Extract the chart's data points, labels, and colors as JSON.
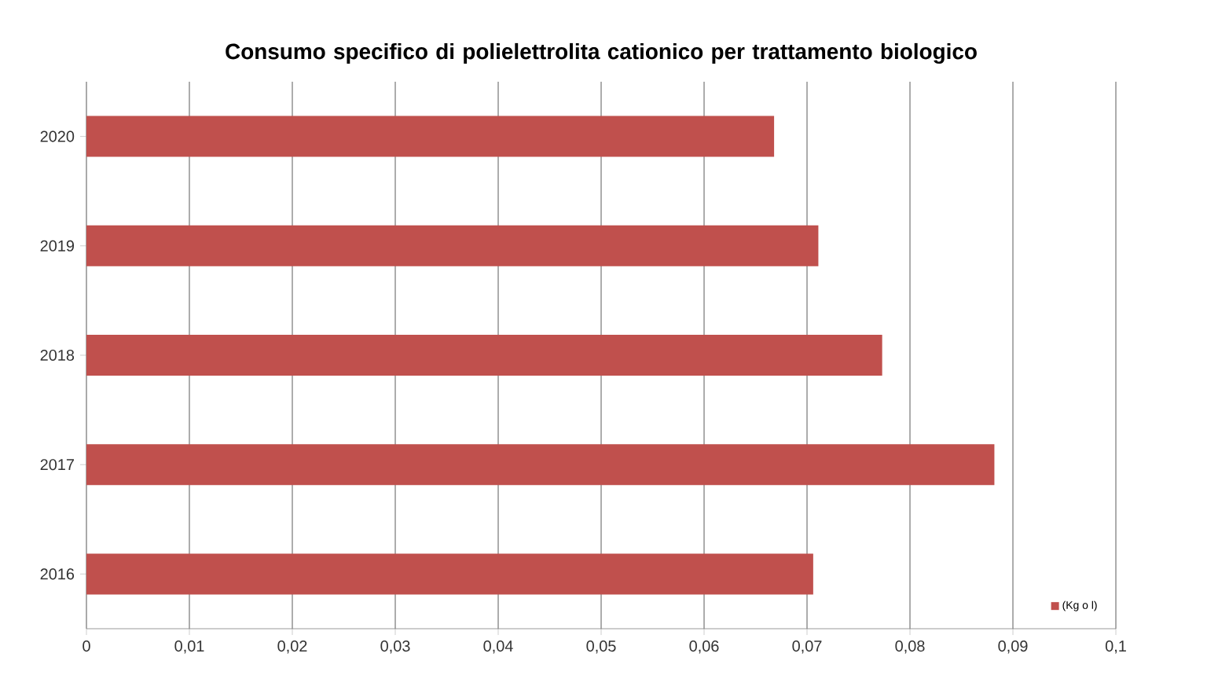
{
  "chart_data": {
    "type": "bar",
    "orientation": "horizontal",
    "title": "Consumo specifico di polielettrolita cationico per trattamento biologico",
    "categories": [
      "2020",
      "2019",
      "2018",
      "2017",
      "2016"
    ],
    "series": [
      {
        "name": "(Kg o l)",
        "color": "#c0504d",
        "values": [
          0.0668,
          0.0711,
          0.0773,
          0.0882,
          0.0706
        ]
      }
    ],
    "xlim": [
      0,
      0.1
    ],
    "xticks": [
      0,
      {
        "value": 0.01,
        "label": "0,01"
      },
      {
        "value": 0.02,
        "label": "0,02"
      },
      {
        "value": 0.03,
        "label": "0,03"
      },
      {
        "value": 0.04,
        "label": "0,04"
      },
      {
        "value": 0.05,
        "label": "0,05"
      },
      {
        "value": 0.06,
        "label": "0,06"
      },
      {
        "value": 0.07,
        "label": "0,07"
      },
      {
        "value": 0.08,
        "label": "0,08"
      },
      {
        "value": 0.09,
        "label": "0,09"
      },
      {
        "value": 0.1,
        "label": "0,1"
      }
    ],
    "grid": "x",
    "legend": "bottom right"
  }
}
